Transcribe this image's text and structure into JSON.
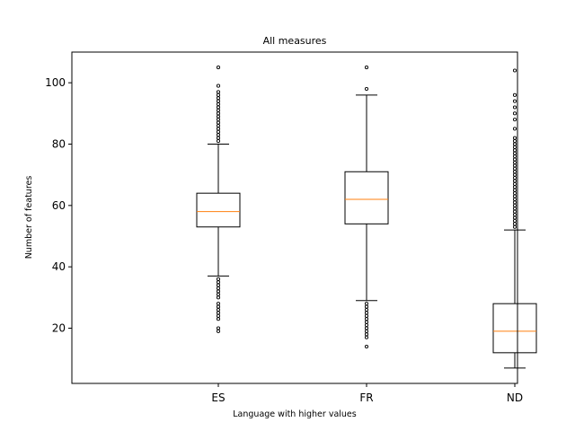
{
  "chart_data": {
    "type": "box",
    "title": "All measures",
    "xlabel": "Language with higher values",
    "ylabel": "Number of features",
    "ylim": [
      2,
      110
    ],
    "yticks": [
      20,
      40,
      60,
      80,
      100
    ],
    "grid": false,
    "colors": {
      "box": "#000000",
      "median": "#ff7f0e",
      "flier": "#000000"
    },
    "boxes": [
      {
        "name": "ES",
        "whisker_low": 37,
        "q1": 53,
        "median": 58,
        "q3": 64,
        "whisker_high": 80,
        "fliers": [
          19,
          20,
          23,
          24,
          25,
          26,
          27,
          28,
          30,
          31,
          32,
          33,
          34,
          35,
          36,
          81,
          82,
          83,
          84,
          85,
          86,
          87,
          88,
          89,
          90,
          91,
          92,
          93,
          94,
          95,
          96,
          97,
          99,
          105
        ]
      },
      {
        "name": "FR",
        "whisker_low": 29,
        "q1": 54,
        "median": 62,
        "q3": 71,
        "whisker_high": 96,
        "fliers": [
          14,
          17,
          18,
          19,
          20,
          21,
          22,
          23,
          24,
          25,
          26,
          27,
          28,
          98,
          105
        ]
      },
      {
        "name": "ND",
        "whisker_low": 7,
        "q1": 12,
        "median": 19,
        "q3": 28,
        "whisker_high": 52,
        "fliers": [
          53,
          54,
          55,
          56,
          57,
          58,
          59,
          60,
          61,
          62,
          63,
          64,
          65,
          66,
          67,
          68,
          69,
          70,
          71,
          72,
          73,
          74,
          75,
          76,
          77,
          78,
          79,
          80,
          81,
          82,
          85,
          88,
          90,
          92,
          94,
          96,
          104
        ]
      }
    ]
  }
}
